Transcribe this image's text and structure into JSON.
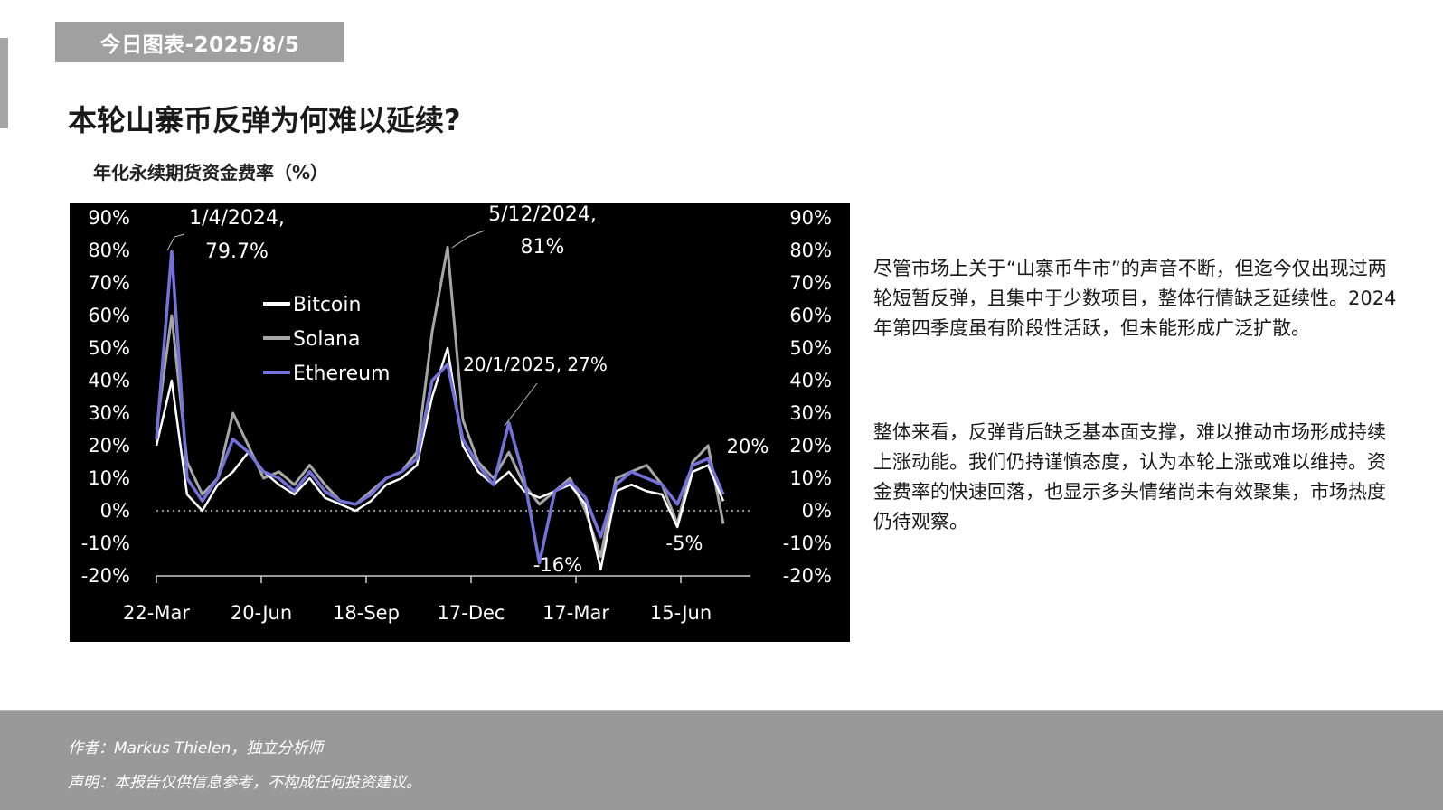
{
  "header": {
    "tag": "今日图表-2025/8/5",
    "title": "本轮山寨币反弹为何难以延续?",
    "chart_subtitle": "年化永续期货资金费率（%）"
  },
  "commentary": {
    "paragraphs": [
      "尽管市场上关于“山寨币牛市”的声音不断，但迄今仅出现过两轮短暂反弹，且集中于少数项目，整体行情缺乏延续性。2024年第四季度虽有阶段性活跃，但未能形成广泛扩散。",
      "整体来看，反弹背后缺乏基本面支撑，难以推动市场形成持续上涨动能。我们仍持谨慎态度，认为本轮上涨或难以维持。资金费率的快速回落，也显示多头情绪尚未有效聚集，市场热度仍待观察。"
    ]
  },
  "footer": {
    "author": "作者：Markus Thielen，独立分析师",
    "disclaimer": "声明：本报告仅供信息参考，不构成任何投资建议。"
  },
  "colors": {
    "bitcoin": "#ffffff",
    "solana": "#a6a6a6",
    "ethereum": "#7272d8",
    "chart_bg": "#000000",
    "tag_band": "#a0a0a0",
    "footer_bg": "#999999"
  },
  "chart_data": {
    "type": "line",
    "title": "年化永续期货资金费率（%）",
    "xlabel": "",
    "ylabel": "%",
    "ylim": [
      -20,
      90
    ],
    "yticks": [
      "90%",
      "80%",
      "70%",
      "60%",
      "50%",
      "40%",
      "30%",
      "20%",
      "10%",
      "0%",
      "-10%",
      "-20%"
    ],
    "x_tick_labels": [
      "22-Mar",
      "20-Jun",
      "18-Sep",
      "17-Dec",
      "17-Mar",
      "15-Jun"
    ],
    "grid": false,
    "zero_line": "dotted",
    "legend": {
      "position": "upper-left-inside",
      "entries": [
        "Bitcoin",
        "Solana",
        "Ethereum"
      ]
    },
    "annotations": [
      {
        "label_line1": "1/4/2024,",
        "label_line2": "79.7%",
        "date": "1/4/2024",
        "value": 79.7
      },
      {
        "label_line1": "5/12/2024,",
        "label_line2": "81%",
        "date": "5/12/2024",
        "value": 81
      },
      {
        "label_line1": "20/1/2025, 27%",
        "date": "20/1/2025",
        "value": 27
      },
      {
        "label_line1": "-16%",
        "value": -16
      },
      {
        "label_line1": "-5%",
        "value": -5
      },
      {
        "label_line1": "20%",
        "value": 20
      }
    ],
    "x": [
      "22-Mar-24",
      "5-Apr",
      "19-Apr",
      "3-May",
      "17-May",
      "31-May",
      "14-Jun",
      "28-Jun",
      "12-Jul",
      "26-Jul",
      "9-Aug",
      "23-Aug",
      "6-Sep",
      "20-Sep",
      "4-Oct",
      "18-Oct",
      "1-Nov",
      "15-Nov",
      "29-Nov",
      "5-Dec",
      "13-Dec",
      "27-Dec",
      "10-Jan",
      "20-Jan",
      "3-Feb",
      "17-Feb",
      "3-Mar",
      "17-Mar",
      "31-Mar",
      "14-Apr",
      "28-Apr",
      "12-May",
      "26-May",
      "9-Jun",
      "23-Jun",
      "7-Jul",
      "21-Jul",
      "4-Aug"
    ],
    "series": [
      {
        "name": "Bitcoin",
        "values": [
          20,
          40,
          5,
          0,
          8,
          12,
          18,
          12,
          8,
          5,
          10,
          4,
          2,
          0,
          3,
          8,
          10,
          14,
          35,
          50,
          20,
          12,
          8,
          12,
          6,
          4,
          6,
          8,
          2,
          -18,
          6,
          8,
          6,
          5,
          -5,
          12,
          14,
          3
        ]
      },
      {
        "name": "Solana",
        "values": [
          25,
          60,
          15,
          5,
          10,
          30,
          20,
          10,
          12,
          8,
          14,
          8,
          3,
          2,
          6,
          10,
          12,
          18,
          55,
          81,
          28,
          15,
          10,
          18,
          8,
          2,
          6,
          10,
          0,
          -14,
          10,
          12,
          14,
          8,
          -4,
          15,
          20,
          -4
        ]
      },
      {
        "name": "Ethereum",
        "values": [
          22,
          79.7,
          10,
          3,
          10,
          22,
          18,
          12,
          10,
          6,
          12,
          6,
          3,
          2,
          5,
          10,
          12,
          16,
          40,
          45,
          22,
          14,
          8,
          27,
          10,
          -16,
          6,
          9,
          4,
          -8,
          8,
          12,
          10,
          8,
          2,
          14,
          16,
          5
        ]
      }
    ]
  }
}
